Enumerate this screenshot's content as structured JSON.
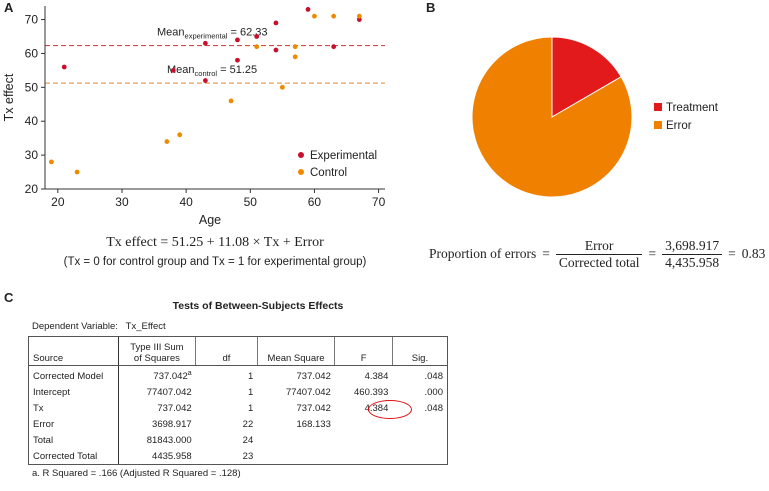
{
  "panels": {
    "a": "A",
    "b": "B",
    "c": "C"
  },
  "colors": {
    "experimental": "#c8102e",
    "control": "#ee8a00",
    "mean_exp_line": "#d64a4a",
    "mean_ctrl_line": "#e6a35a",
    "treatment": "#e31a1c",
    "error": "#f08000",
    "circle": "#d11111"
  },
  "chart_data": [
    {
      "type": "scatter",
      "panel": "A",
      "xlabel": "Age",
      "ylabel": "Tx effect",
      "xlim": [
        18,
        71
      ],
      "ylim": [
        20,
        74
      ],
      "xticks": [
        20,
        30,
        40,
        50,
        60,
        70
      ],
      "yticks": [
        20,
        30,
        40,
        50,
        60,
        70
      ],
      "series": [
        {
          "name": "Experimental",
          "color": "#c8102e",
          "points": [
            [
              21,
              56
            ],
            [
              38,
              55
            ],
            [
              43,
              63
            ],
            [
              43,
              52
            ],
            [
              48,
              58
            ],
            [
              51,
              65
            ],
            [
              48,
              64
            ],
            [
              54,
              69
            ],
            [
              54,
              61
            ],
            [
              59,
              73
            ],
            [
              63,
              62
            ],
            [
              67,
              70
            ]
          ]
        },
        {
          "name": "Control",
          "color": "#ee8a00",
          "points": [
            [
              19,
              28
            ],
            [
              23,
              25
            ],
            [
              37,
              34
            ],
            [
              39,
              36
            ],
            [
              47,
              46
            ],
            [
              55,
              50
            ],
            [
              57,
              59
            ],
            [
              51,
              62
            ],
            [
              57,
              62
            ],
            [
              60,
              71
            ],
            [
              63,
              71
            ],
            [
              67,
              71
            ]
          ]
        }
      ],
      "reference_lines": [
        {
          "name": "mean_experimental",
          "value": 62.33,
          "label_main": "Mean",
          "label_sub": "experimental",
          "label_value": " = 62.33"
        },
        {
          "name": "mean_control",
          "value": 51.25,
          "label_main": "Mean",
          "label_sub": "control",
          "label_value": " = 51.25"
        }
      ],
      "legend": [
        {
          "label": "Experimental",
          "color": "#c8102e"
        },
        {
          "label": "Control",
          "color": "#ee8a00"
        }
      ],
      "legend_position": "lower-right"
    },
    {
      "type": "pie",
      "panel": "B",
      "slices": [
        {
          "label": "Treatment",
          "value": 737.042,
          "color": "#e31a1c"
        },
        {
          "label": "Error",
          "value": 3698.917,
          "color": "#f08000"
        }
      ],
      "legend_position": "right"
    }
  ],
  "equation_a": "Tx effect = 51.25 + 11.08 × Tx + Error",
  "note_a": "(Tx = 0 for control group and Tx = 1 for experimental group)",
  "equation_b": {
    "lhs": "Proportion of errors",
    "frac1_num": "Error",
    "frac1_den": "Corrected total",
    "frac2_num": "3,698.917",
    "frac2_den": "4,435.958",
    "result": "0.83"
  },
  "table": {
    "title": "Tests of Between-Subjects Effects",
    "dep_var_label": "Dependent Variable:",
    "dep_var_value": "Tx_Effect",
    "headers": [
      "Source",
      "Type III Sum of Squares",
      "df",
      "Mean Square",
      "F",
      "Sig."
    ],
    "header_sos_line1": "Type III Sum",
    "header_sos_line2": "of Squares",
    "rows": [
      {
        "source": "Corrected Model",
        "ss": "737.042",
        "sup": "a",
        "df": "1",
        "ms": "737.042",
        "f": "4.384",
        "sig": ".048"
      },
      {
        "source": "Intercept",
        "ss": "77407.042",
        "sup": "",
        "df": "1",
        "ms": "77407.042",
        "f": "460.393",
        "sig": ".000"
      },
      {
        "source": "Tx",
        "ss": "737.042",
        "sup": "",
        "df": "1",
        "ms": "737.042",
        "f": "4.384",
        "sig": ".048"
      },
      {
        "source": "Error",
        "ss": "3698.917",
        "sup": "",
        "df": "22",
        "ms": "168.133",
        "f": "",
        "sig": ""
      },
      {
        "source": "Total",
        "ss": "81843.000",
        "sup": "",
        "df": "24",
        "ms": "",
        "f": "",
        "sig": ""
      },
      {
        "source": "Corrected Total",
        "ss": "4435.958",
        "sup": "",
        "df": "23",
        "ms": "",
        "f": "",
        "sig": ""
      }
    ],
    "footnote": "a. R Squared = .166 (Adjusted R Squared = .128)"
  }
}
